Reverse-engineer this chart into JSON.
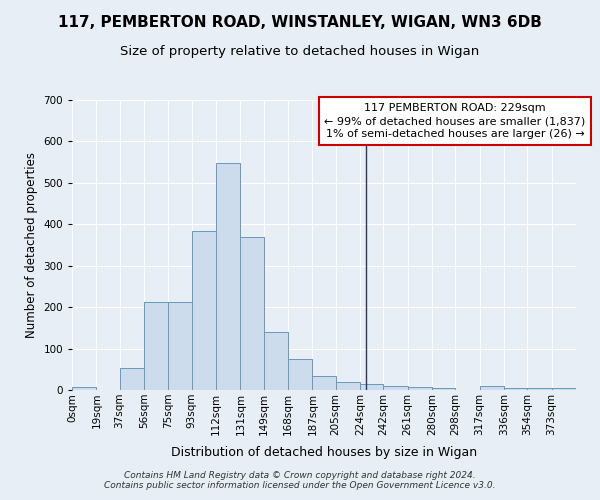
{
  "title": "117, PEMBERTON ROAD, WINSTANLEY, WIGAN, WN3 6DB",
  "subtitle": "Size of property relative to detached houses in Wigan",
  "xlabel": "Distribution of detached houses by size in Wigan",
  "ylabel": "Number of detached properties",
  "bin_edges": [
    0,
    19,
    37,
    56,
    75,
    93,
    112,
    131,
    149,
    168,
    187,
    205,
    224,
    242,
    261,
    280,
    298,
    317,
    336,
    354,
    373,
    392
  ],
  "bar_heights": [
    8,
    0,
    53,
    213,
    213,
    383,
    548,
    370,
    140,
    75,
    35,
    20,
    15,
    10,
    8,
    5,
    0,
    10,
    5,
    5,
    5
  ],
  "bar_color": "#ccdcec",
  "bar_edgecolor": "#6699bb",
  "vline_x": 229,
  "vline_color": "#333355",
  "annotation_box_text": "117 PEMBERTON ROAD: 229sqm\n← 99% of detached houses are smaller (1,837)\n1% of semi-detached houses are larger (26) →",
  "annotation_box_edgecolor": "#cc0000",
  "annotation_box_bg": "#ffffff",
  "ylim": [
    0,
    700
  ],
  "yticks": [
    0,
    100,
    200,
    300,
    400,
    500,
    600,
    700
  ],
  "title_fontsize": 11,
  "subtitle_fontsize": 9.5,
  "xlabel_fontsize": 9,
  "ylabel_fontsize": 8.5,
  "tick_fontsize": 7.5,
  "annotation_fontsize": 8,
  "background_color": "#e8eef5",
  "axes_background_color": "#e8eef5",
  "grid_color": "#ffffff",
  "footer_text": "Contains HM Land Registry data © Crown copyright and database right 2024.\nContains public sector information licensed under the Open Government Licence v3.0."
}
